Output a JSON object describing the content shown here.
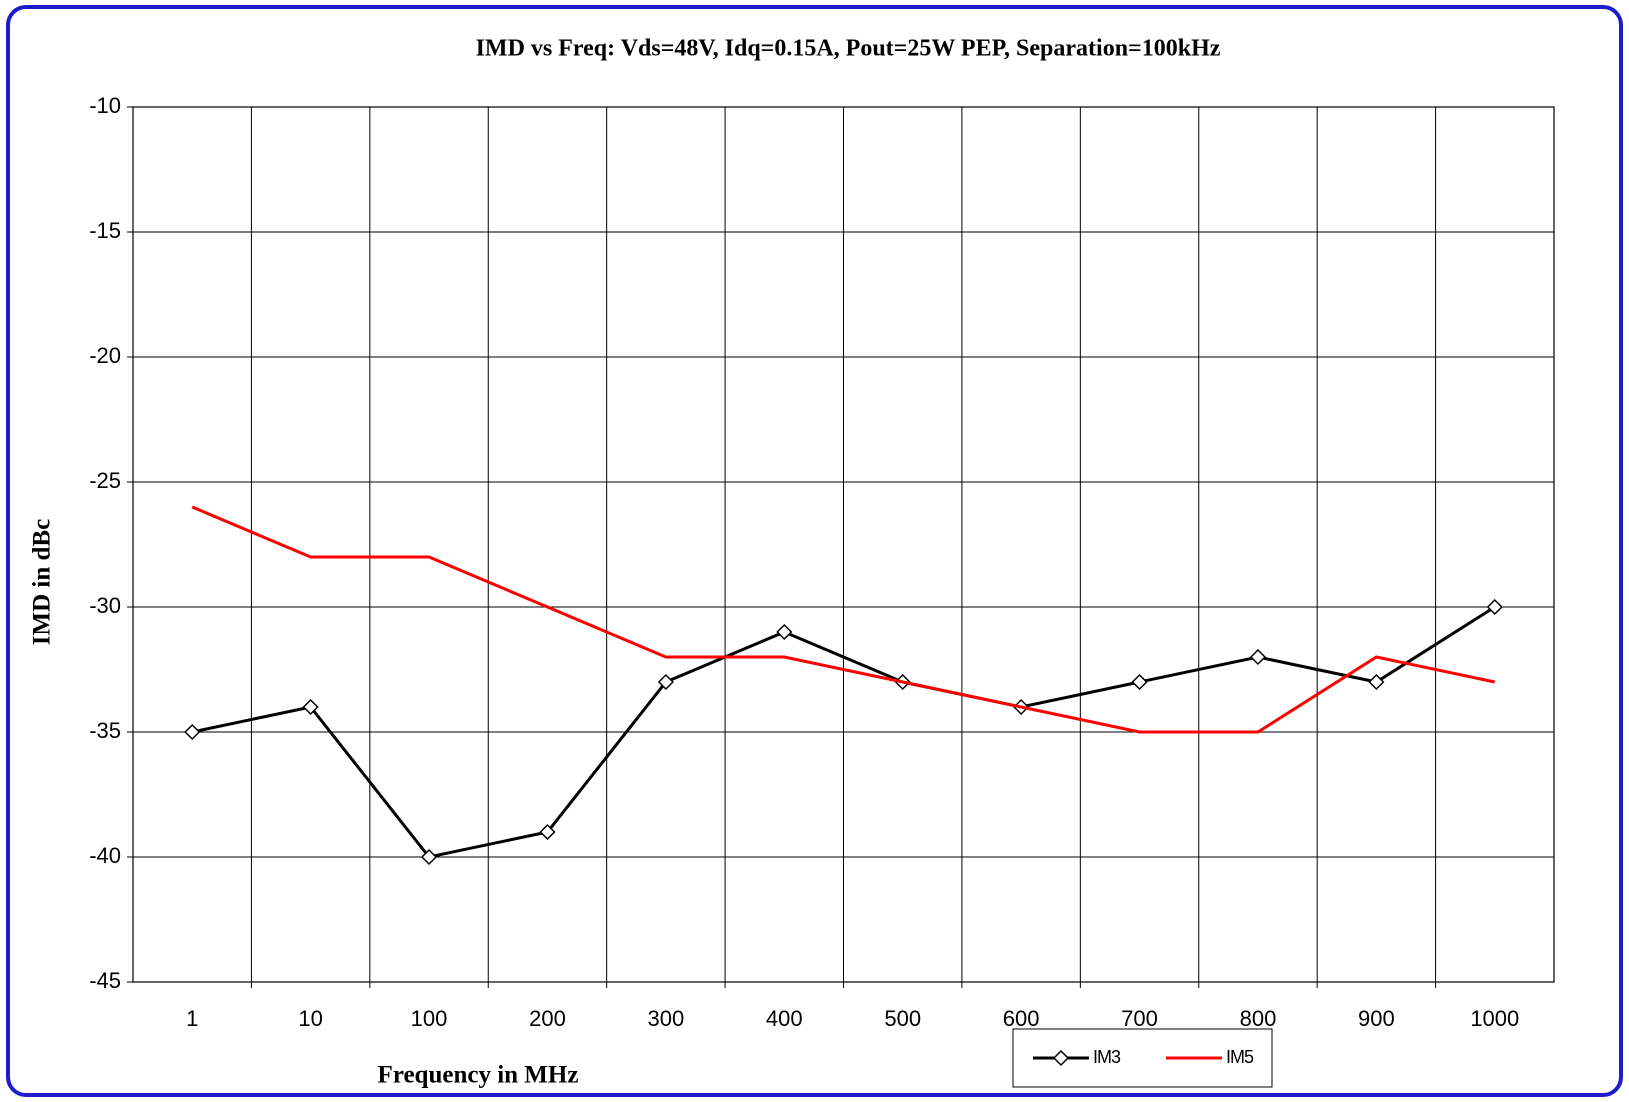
{
  "chart_data": {
    "type": "line",
    "title": "IMD vs Freq: Vds=48V, Idq=0.15A, Pout=25W PEP, Separation=100kHz",
    "x_label": "Frequency in MHz",
    "y_label": "IMD in dBc",
    "categories": [
      "1",
      "10",
      "100",
      "200",
      "300",
      "400",
      "500",
      "600",
      "700",
      "800",
      "900",
      "1000"
    ],
    "series": [
      {
        "name": "IM3",
        "color": "#000000",
        "marker": "diamond",
        "values": [
          -35,
          -34,
          -40,
          -39,
          -33,
          -31,
          -33,
          -34,
          -33,
          -32,
          -33,
          -30
        ]
      },
      {
        "name": "IM5",
        "color": "#ff0000",
        "marker": "none",
        "values": [
          -26,
          -28,
          -28,
          -30,
          -32,
          -32,
          -33,
          -34,
          -35,
          -35,
          -32,
          -33
        ]
      }
    ],
    "ylim": [
      -45,
      -10
    ],
    "yticks": [
      -45,
      -40,
      -35,
      -30,
      -25,
      -20,
      -15,
      -10
    ],
    "grid": true
  }
}
